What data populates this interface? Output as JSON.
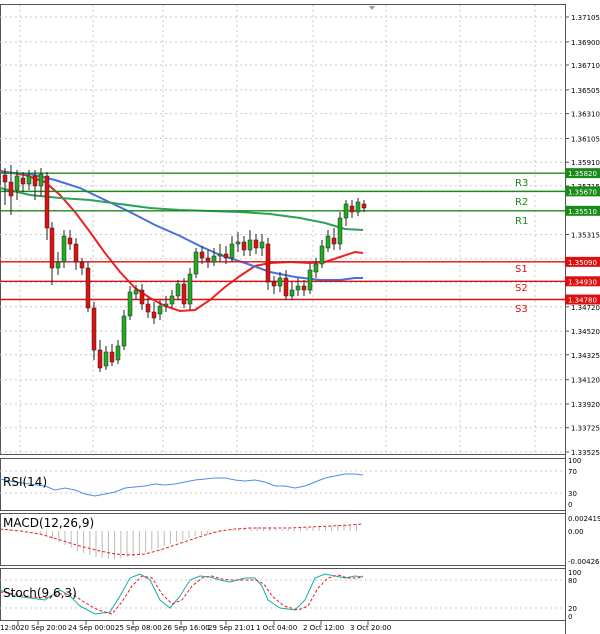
{
  "price_axis_labels": [
    "1.37105",
    "1.36900",
    "1.36710",
    "1.36505",
    "1.36310",
    "1.36105",
    "1.35910",
    "1.35715",
    "1.35315",
    "1.35115",
    "1.34920",
    "1.34720",
    "1.34520",
    "1.34325",
    "1.34120",
    "1.33920",
    "1.33725",
    "1.33525"
  ],
  "levels": [
    {
      "name": "R3",
      "price": "1.35820",
      "type": "resistance"
    },
    {
      "name": "R2",
      "price": "1.35670",
      "type": "resistance"
    },
    {
      "name": "R1",
      "price": "1.35510",
      "type": "resistance"
    },
    {
      "name": "S1",
      "price": "1.35090",
      "type": "support"
    },
    {
      "name": "S2",
      "price": "1.34930",
      "type": "support"
    },
    {
      "name": "S3",
      "price": "1.34780",
      "type": "support"
    }
  ],
  "time_labels": [
    "12:00",
    "20 Sep 20:00",
    "24 Sep 00:00",
    "25 Sep 08:00",
    "26 Sep 16:00",
    "29 Sep 21:01",
    "1 Oct 04:00",
    "2 Oct 12:00",
    "3 Oct 20:00"
  ],
  "rsi": {
    "title": "RSI(14)",
    "scale": [
      "100",
      "70",
      "30",
      "0"
    ]
  },
  "macd": {
    "title": "MACD(12,26,9)",
    "scale": [
      "0.002419",
      "0.00",
      "-0.004269"
    ]
  },
  "stoch": {
    "title": "Stoch(9,6,3)",
    "scale": [
      "100",
      "80",
      "20",
      "0"
    ]
  },
  "colors": {
    "resistance": "#1a8a1a",
    "support": "#dd1010",
    "bull": "#22aa22",
    "bear": "#dd1111",
    "ma_fast": "#ee2222",
    "ma_mid": "#4a6ee0",
    "ma_slow": "#2fa05a",
    "signal": "#dd2222",
    "grid": "#c8c8c8"
  }
}
